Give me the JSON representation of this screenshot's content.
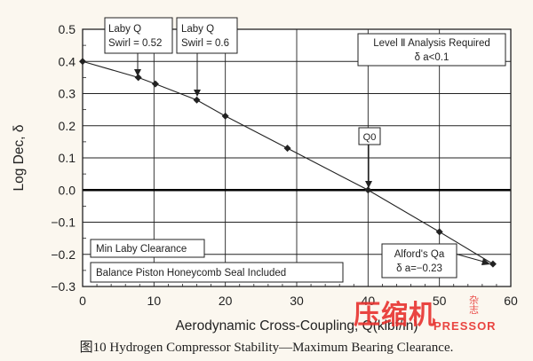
{
  "caption": "图10  Hydrogen Compressor Stability—Maximum Bearing Clearance.",
  "watermark": {
    "main": "压缩机",
    "side": "杂志",
    "sub": "PRESSOR"
  },
  "chart_data": {
    "type": "line",
    "xlabel": "Aerodynamic Cross-Coupling, Q(klbf/in)",
    "ylabel": "Log Dec, δ",
    "xlim": [
      0,
      60
    ],
    "ylim": [
      -0.3,
      0.5
    ],
    "xticks": [
      0,
      10,
      20,
      30,
      40,
      50,
      60
    ],
    "yticks": [
      -0.3,
      -0.2,
      -0.1,
      0.0,
      0.1,
      0.2,
      0.3,
      0.4,
      0.5
    ],
    "ytick_labels": [
      "−0.3",
      "−0.2",
      "−0.1",
      "0.0",
      "0.1",
      "0.2",
      "0.3",
      "0.4",
      "0.5"
    ],
    "grid": true,
    "series": [
      {
        "x": [
          0,
          7.8,
          10.2,
          16,
          20,
          28.7,
          40,
          50,
          57.5
        ],
        "y": [
          0.4,
          0.35,
          0.33,
          0.28,
          0.23,
          0.13,
          0.0,
          -0.13,
          -0.23
        ]
      }
    ],
    "zero_line": 0.0,
    "annotations": [
      {
        "name": "laby-q-052",
        "lines": [
          "Laby Q",
          "Swirl = 0.52"
        ],
        "point": [
          7.8,
          0.35
        ]
      },
      {
        "name": "laby-q-06",
        "lines": [
          "Laby Q",
          "Swirl = 0.6"
        ],
        "point": [
          16,
          0.28
        ]
      },
      {
        "name": "level-2",
        "lines": [
          "Level Ⅱ Analysis Required",
          "δ a<0.1"
        ]
      },
      {
        "name": "q0",
        "lines": [
          "Q0"
        ],
        "point": [
          40,
          0.0
        ]
      },
      {
        "name": "min-laby",
        "lines": [
          "Min Laby Clearance"
        ]
      },
      {
        "name": "balance-piston",
        "lines": [
          "Balance Piston Honeycomb Seal Included"
        ]
      },
      {
        "name": "alford",
        "lines": [
          "Alford's Qa",
          "δ a=−0.23"
        ],
        "point": [
          57.5,
          -0.23
        ]
      }
    ]
  }
}
